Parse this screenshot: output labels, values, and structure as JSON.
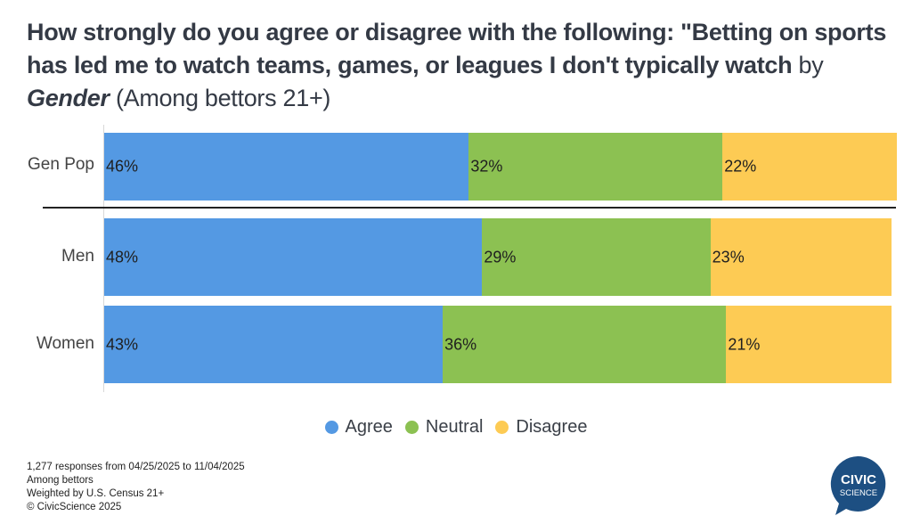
{
  "chart_data": {
    "type": "bar",
    "orientation": "horizontal",
    "stacked": true,
    "title": {
      "part1": "How strongly do you agree or disagree with the following: \"Betting on sports has led me to watch teams, games, or leagues I don't typically watch",
      "part2": "by",
      "part3": "Gender",
      "part4": "(Among bettors 21+)"
    },
    "categories": [
      "Gen Pop",
      "Men",
      "Women"
    ],
    "series": [
      {
        "name": "Agree",
        "color": "#5499e3",
        "values": [
          46,
          48,
          43
        ],
        "labels": [
          "46%",
          "48%",
          "43%"
        ]
      },
      {
        "name": "Neutral",
        "color": "#8cc152",
        "values": [
          32,
          29,
          36
        ],
        "labels": [
          "32%",
          "29%",
          "36%"
        ]
      },
      {
        "name": "Disagree",
        "color": "#fdcb54",
        "values": [
          22,
          23,
          21
        ],
        "labels": [
          "22%",
          "23%",
          "21%"
        ]
      }
    ],
    "xlim": [
      0,
      100
    ],
    "legend_position": "bottom-center",
    "grid": false
  },
  "footer": {
    "line1": "1,277 responses from 04/25/2025 to 11/04/2025",
    "line2": "Among bettors",
    "line3": "Weighted by U.S. Census 21+",
    "line4": "© CivicScience 2025"
  },
  "logo": {
    "line1": "CIVIC",
    "line2": "SCIENCE",
    "color": "#1d4f82"
  }
}
